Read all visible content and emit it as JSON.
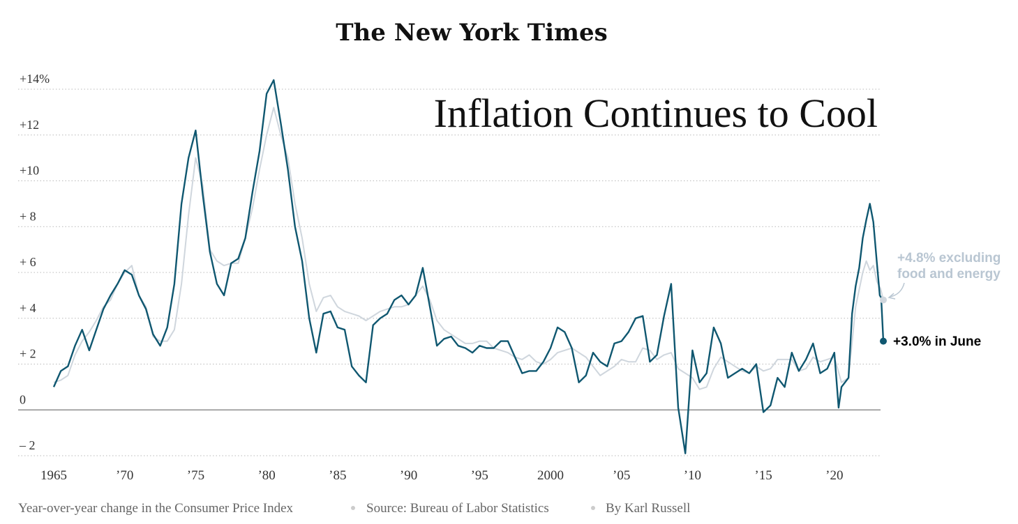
{
  "masthead": "The New York Times",
  "footer": {
    "description": "Year-over-year change in the Consumer Price Index",
    "source": "Source: Bureau of Labor Statistics",
    "byline": "By Karl Russell"
  },
  "chart_data": {
    "type": "line",
    "title": "Inflation Continues to Cool",
    "xlabel": "",
    "ylabel": "",
    "xlim": [
      1965,
      2023.5
    ],
    "ylim": [
      -2,
      14
    ],
    "grid": true,
    "y_ticks": [
      {
        "value": 14,
        "label": "+14%"
      },
      {
        "value": 12,
        "label": "+12"
      },
      {
        "value": 10,
        "label": "+10"
      },
      {
        "value": 8,
        "label": "+ 8"
      },
      {
        "value": 6,
        "label": "+ 6"
      },
      {
        "value": 4,
        "label": "+ 4"
      },
      {
        "value": 2,
        "label": "+ 2"
      },
      {
        "value": 0,
        "label": "0"
      },
      {
        "value": -2,
        "label": "– 2"
      }
    ],
    "x_ticks": [
      {
        "value": 1965,
        "label": "1965"
      },
      {
        "value": 1970,
        "label": "’70"
      },
      {
        "value": 1975,
        "label": "’75"
      },
      {
        "value": 1980,
        "label": "’80"
      },
      {
        "value": 1985,
        "label": "’85"
      },
      {
        "value": 1990,
        "label": "’90"
      },
      {
        "value": 1995,
        "label": "’95"
      },
      {
        "value": 2000,
        "label": "2000"
      },
      {
        "value": 2005,
        "label": "’05"
      },
      {
        "value": 2010,
        "label": "’10"
      },
      {
        "value": 2015,
        "label": "’15"
      },
      {
        "value": 2020,
        "label": "’20"
      }
    ],
    "series": [
      {
        "key": "core",
        "color": "#cfd6dd",
        "points": [
          [
            1965.0,
            1.2
          ],
          [
            1965.5,
            1.3
          ],
          [
            1966.0,
            1.5
          ],
          [
            1966.5,
            2.4
          ],
          [
            1967.0,
            3.0
          ],
          [
            1967.5,
            3.4
          ],
          [
            1968.0,
            3.9
          ],
          [
            1968.5,
            4.5
          ],
          [
            1969.0,
            4.8
          ],
          [
            1969.5,
            5.5
          ],
          [
            1970.0,
            6.0
          ],
          [
            1970.5,
            6.3
          ],
          [
            1971.0,
            5.0
          ],
          [
            1971.5,
            4.5
          ],
          [
            1972.0,
            3.2
          ],
          [
            1972.5,
            3.0
          ],
          [
            1973.0,
            3.0
          ],
          [
            1973.5,
            3.5
          ],
          [
            1974.0,
            5.5
          ],
          [
            1974.5,
            8.5
          ],
          [
            1975.0,
            11.0
          ],
          [
            1975.5,
            9.8
          ],
          [
            1976.0,
            7.0
          ],
          [
            1976.5,
            6.5
          ],
          [
            1977.0,
            6.3
          ],
          [
            1977.5,
            6.4
          ],
          [
            1978.0,
            6.4
          ],
          [
            1978.5,
            7.5
          ],
          [
            1979.0,
            8.8
          ],
          [
            1979.5,
            10.5
          ],
          [
            1980.0,
            12.0
          ],
          [
            1980.5,
            13.2
          ],
          [
            1981.0,
            12.0
          ],
          [
            1981.5,
            11.0
          ],
          [
            1982.0,
            9.0
          ],
          [
            1982.5,
            7.5
          ],
          [
            1983.0,
            5.5
          ],
          [
            1983.5,
            4.3
          ],
          [
            1984.0,
            4.9
          ],
          [
            1984.5,
            5.0
          ],
          [
            1985.0,
            4.5
          ],
          [
            1985.5,
            4.3
          ],
          [
            1986.0,
            4.2
          ],
          [
            1986.5,
            4.1
          ],
          [
            1987.0,
            3.9
          ],
          [
            1987.5,
            4.1
          ],
          [
            1988.0,
            4.3
          ],
          [
            1988.5,
            4.4
          ],
          [
            1989.0,
            4.5
          ],
          [
            1989.5,
            4.5
          ],
          [
            1990.0,
            4.6
          ],
          [
            1990.5,
            5.0
          ],
          [
            1991.0,
            5.4
          ],
          [
            1991.5,
            4.8
          ],
          [
            1992.0,
            3.9
          ],
          [
            1992.5,
            3.5
          ],
          [
            1993.0,
            3.3
          ],
          [
            1993.5,
            3.1
          ],
          [
            1994.0,
            2.9
          ],
          [
            1994.5,
            2.9
          ],
          [
            1995.0,
            3.0
          ],
          [
            1995.5,
            3.0
          ],
          [
            1996.0,
            2.7
          ],
          [
            1996.5,
            2.6
          ],
          [
            1997.0,
            2.5
          ],
          [
            1997.5,
            2.3
          ],
          [
            1998.0,
            2.2
          ],
          [
            1998.5,
            2.4
          ],
          [
            1999.0,
            2.1
          ],
          [
            1999.5,
            2.0
          ],
          [
            2000.0,
            2.2
          ],
          [
            2000.5,
            2.5
          ],
          [
            2001.0,
            2.6
          ],
          [
            2001.5,
            2.7
          ],
          [
            2002.0,
            2.5
          ],
          [
            2002.5,
            2.3
          ],
          [
            2003.0,
            1.9
          ],
          [
            2003.5,
            1.5
          ],
          [
            2004.0,
            1.7
          ],
          [
            2004.5,
            1.9
          ],
          [
            2005.0,
            2.2
          ],
          [
            2005.5,
            2.1
          ],
          [
            2006.0,
            2.1
          ],
          [
            2006.5,
            2.7
          ],
          [
            2007.0,
            2.6
          ],
          [
            2007.5,
            2.2
          ],
          [
            2008.0,
            2.4
          ],
          [
            2008.5,
            2.5
          ],
          [
            2009.0,
            1.8
          ],
          [
            2009.5,
            1.6
          ],
          [
            2010.0,
            1.4
          ],
          [
            2010.5,
            0.9
          ],
          [
            2011.0,
            1.0
          ],
          [
            2011.5,
            1.8
          ],
          [
            2012.0,
            2.3
          ],
          [
            2012.5,
            2.1
          ],
          [
            2013.0,
            1.9
          ],
          [
            2013.5,
            1.7
          ],
          [
            2014.0,
            1.6
          ],
          [
            2014.5,
            1.9
          ],
          [
            2015.0,
            1.7
          ],
          [
            2015.5,
            1.8
          ],
          [
            2016.0,
            2.2
          ],
          [
            2016.5,
            2.2
          ],
          [
            2017.0,
            2.2
          ],
          [
            2017.5,
            1.7
          ],
          [
            2018.0,
            1.8
          ],
          [
            2018.5,
            2.3
          ],
          [
            2019.0,
            2.1
          ],
          [
            2019.5,
            2.2
          ],
          [
            2020.0,
            2.3
          ],
          [
            2020.5,
            1.2
          ],
          [
            2021.0,
            1.4
          ],
          [
            2021.5,
            4.5
          ],
          [
            2022.0,
            6.0
          ],
          [
            2022.25,
            6.5
          ],
          [
            2022.5,
            6.1
          ],
          [
            2022.75,
            6.3
          ],
          [
            2023.0,
            5.6
          ],
          [
            2023.25,
            5.3
          ],
          [
            2023.45,
            4.8
          ]
        ]
      },
      {
        "key": "headline",
        "color": "#0f5770",
        "points": [
          [
            1965.0,
            1.0
          ],
          [
            1965.5,
            1.7
          ],
          [
            1966.0,
            1.9
          ],
          [
            1966.5,
            2.8
          ],
          [
            1967.0,
            3.5
          ],
          [
            1967.5,
            2.6
          ],
          [
            1968.0,
            3.5
          ],
          [
            1968.5,
            4.4
          ],
          [
            1969.0,
            5.0
          ],
          [
            1969.5,
            5.5
          ],
          [
            1970.0,
            6.1
          ],
          [
            1970.5,
            5.9
          ],
          [
            1971.0,
            5.0
          ],
          [
            1971.5,
            4.4
          ],
          [
            1972.0,
            3.3
          ],
          [
            1972.5,
            2.8
          ],
          [
            1973.0,
            3.6
          ],
          [
            1973.5,
            5.5
          ],
          [
            1974.0,
            9.0
          ],
          [
            1974.5,
            11.0
          ],
          [
            1975.0,
            12.2
          ],
          [
            1975.5,
            9.4
          ],
          [
            1976.0,
            6.9
          ],
          [
            1976.5,
            5.5
          ],
          [
            1977.0,
            5.0
          ],
          [
            1977.5,
            6.4
          ],
          [
            1978.0,
            6.6
          ],
          [
            1978.5,
            7.5
          ],
          [
            1979.0,
            9.5
          ],
          [
            1979.5,
            11.3
          ],
          [
            1980.0,
            13.8
          ],
          [
            1980.5,
            14.4
          ],
          [
            1981.0,
            12.5
          ],
          [
            1981.5,
            10.5
          ],
          [
            1982.0,
            8.0
          ],
          [
            1982.5,
            6.5
          ],
          [
            1983.0,
            4.0
          ],
          [
            1983.5,
            2.5
          ],
          [
            1984.0,
            4.2
          ],
          [
            1984.5,
            4.3
          ],
          [
            1985.0,
            3.6
          ],
          [
            1985.5,
            3.5
          ],
          [
            1986.0,
            1.9
          ],
          [
            1986.5,
            1.5
          ],
          [
            1987.0,
            1.2
          ],
          [
            1987.5,
            3.7
          ],
          [
            1988.0,
            4.0
          ],
          [
            1988.5,
            4.2
          ],
          [
            1989.0,
            4.8
          ],
          [
            1989.5,
            5.0
          ],
          [
            1990.0,
            4.6
          ],
          [
            1990.5,
            5.0
          ],
          [
            1991.0,
            6.2
          ],
          [
            1991.5,
            4.5
          ],
          [
            1992.0,
            2.8
          ],
          [
            1992.5,
            3.1
          ],
          [
            1993.0,
            3.2
          ],
          [
            1993.5,
            2.8
          ],
          [
            1994.0,
            2.7
          ],
          [
            1994.5,
            2.5
          ],
          [
            1995.0,
            2.8
          ],
          [
            1995.5,
            2.7
          ],
          [
            1996.0,
            2.7
          ],
          [
            1996.5,
            3.0
          ],
          [
            1997.0,
            3.0
          ],
          [
            1997.5,
            2.3
          ],
          [
            1998.0,
            1.6
          ],
          [
            1998.5,
            1.7
          ],
          [
            1999.0,
            1.7
          ],
          [
            1999.5,
            2.1
          ],
          [
            2000.0,
            2.7
          ],
          [
            2000.5,
            3.6
          ],
          [
            2001.0,
            3.4
          ],
          [
            2001.5,
            2.7
          ],
          [
            2002.0,
            1.2
          ],
          [
            2002.5,
            1.5
          ],
          [
            2003.0,
            2.5
          ],
          [
            2003.5,
            2.1
          ],
          [
            2004.0,
            1.9
          ],
          [
            2004.5,
            2.9
          ],
          [
            2005.0,
            3.0
          ],
          [
            2005.5,
            3.4
          ],
          [
            2006.0,
            4.0
          ],
          [
            2006.5,
            4.1
          ],
          [
            2007.0,
            2.1
          ],
          [
            2007.5,
            2.4
          ],
          [
            2008.0,
            4.1
          ],
          [
            2008.5,
            5.5
          ],
          [
            2009.0,
            0.1
          ],
          [
            2009.5,
            -1.9
          ],
          [
            2010.0,
            2.6
          ],
          [
            2010.5,
            1.2
          ],
          [
            2011.0,
            1.6
          ],
          [
            2011.5,
            3.6
          ],
          [
            2012.0,
            2.9
          ],
          [
            2012.5,
            1.4
          ],
          [
            2013.0,
            1.6
          ],
          [
            2013.5,
            1.8
          ],
          [
            2014.0,
            1.6
          ],
          [
            2014.5,
            2.0
          ],
          [
            2015.0,
            -0.1
          ],
          [
            2015.5,
            0.2
          ],
          [
            2016.0,
            1.4
          ],
          [
            2016.5,
            1.0
          ],
          [
            2017.0,
            2.5
          ],
          [
            2017.5,
            1.7
          ],
          [
            2018.0,
            2.2
          ],
          [
            2018.5,
            2.9
          ],
          [
            2019.0,
            1.6
          ],
          [
            2019.5,
            1.8
          ],
          [
            2020.0,
            2.5
          ],
          [
            2020.3,
            0.1
          ],
          [
            2020.5,
            1.0
          ],
          [
            2021.0,
            1.4
          ],
          [
            2021.25,
            4.2
          ],
          [
            2021.5,
            5.4
          ],
          [
            2021.75,
            6.2
          ],
          [
            2022.0,
            7.5
          ],
          [
            2022.25,
            8.3
          ],
          [
            2022.5,
            9.0
          ],
          [
            2022.75,
            8.2
          ],
          [
            2023.0,
            6.4
          ],
          [
            2023.2,
            5.0
          ],
          [
            2023.3,
            4.9
          ],
          [
            2023.45,
            3.0
          ]
        ]
      }
    ],
    "annotations": {
      "core_line1": "+4.8% excluding",
      "core_line2": "food and energy",
      "headline": "+3.0% in June"
    }
  }
}
